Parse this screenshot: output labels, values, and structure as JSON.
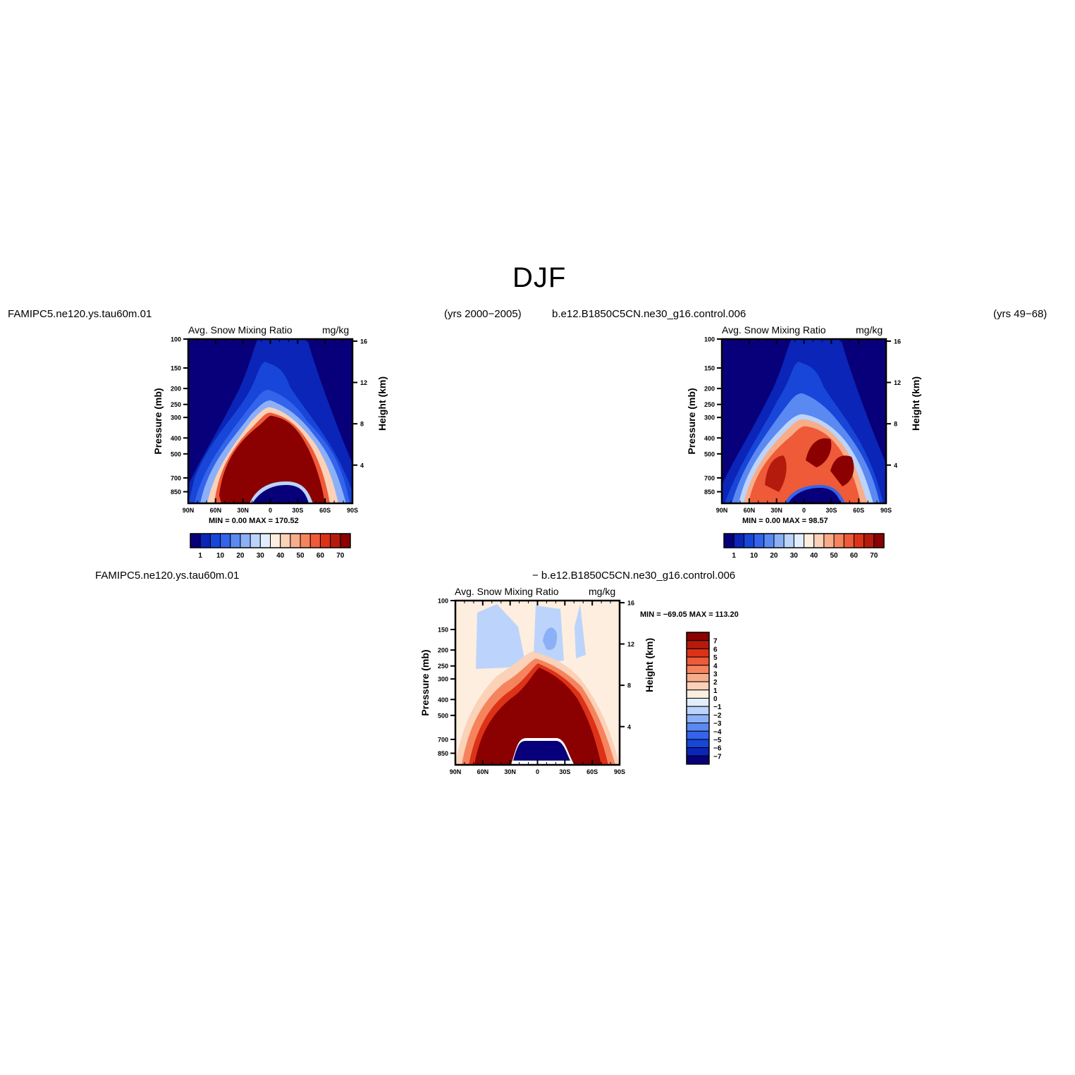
{
  "page": {
    "title": "DJF"
  },
  "panel_a": {
    "case": "FAMIPC5.ne120.ys.tau60m.01",
    "years": "(yrs 2000−2005)",
    "variable": "Avg. Snow Mixing Ratio",
    "units": "mg/kg",
    "left_axis_title": "Pressure (mb)",
    "right_axis_title": "Height (km)",
    "minmax": "MIN =    0.00   MAX = 170.52"
  },
  "panel_b": {
    "case": "b.e12.B1850C5CN.ne30_g16.control.006",
    "years": "(yrs 49−68)",
    "variable": "Avg. Snow Mixing Ratio",
    "units": "mg/kg",
    "left_axis_title": "Pressure (mb)",
    "right_axis_title": "Height (km)",
    "minmax": "MIN =    0.00   MAX =   98.57"
  },
  "panel_diff": {
    "case_a": "FAMIPC5.ne120.ys.tau60m.01",
    "case_b": "− b.e12.B1850C5CN.ne30_g16.control.006",
    "variable": "Avg. Snow Mixing Ratio",
    "units": "mg/kg",
    "left_axis_title": "Pressure (mb)",
    "right_axis_title": "Height (km)",
    "minmax": "MIN = −69.05   MAX = 113.20"
  },
  "colors": {
    "diverging": [
      "#08007a",
      "#0a25b8",
      "#1746d8",
      "#3464ec",
      "#5b89f2",
      "#8cb0f7",
      "#bcd4fb",
      "#e2edfd",
      "#fdeee0",
      "#fbd1b8",
      "#f8ad8a",
      "#f5845e",
      "#ef5a38",
      "#dc3218",
      "#b51b0c",
      "#8b0000"
    ]
  },
  "chart_data": [
    {
      "id": "panel_a",
      "type": "heatmap",
      "title": "Avg. Snow Mixing Ratio",
      "units": "mg/kg",
      "xlabel": "",
      "ylabel": "Pressure (mb)",
      "ylabel_right": "Height (km)",
      "x_ticks": [
        "90N",
        "60N",
        "30N",
        "0",
        "30S",
        "60S",
        "90S"
      ],
      "y_ticks": [
        "100",
        "150",
        "200",
        "250",
        "300",
        "400",
        "500",
        "700",
        "850"
      ],
      "y_ticks_right": [
        "16",
        "12",
        "8",
        "4"
      ],
      "colorbar_labels": [
        "1",
        "10",
        "20",
        "30",
        "40",
        "50",
        "60",
        "70"
      ],
      "min": 0.0,
      "max": 170.52
    },
    {
      "id": "panel_b",
      "type": "heatmap",
      "title": "Avg. Snow Mixing Ratio",
      "units": "mg/kg",
      "xlabel": "",
      "ylabel": "Pressure (mb)",
      "ylabel_right": "Height (km)",
      "x_ticks": [
        "90N",
        "60N",
        "30N",
        "0",
        "30S",
        "60S",
        "90S"
      ],
      "y_ticks": [
        "100",
        "150",
        "200",
        "250",
        "300",
        "400",
        "500",
        "700",
        "850"
      ],
      "y_ticks_right": [
        "16",
        "12",
        "8",
        "4"
      ],
      "colorbar_labels": [
        "1",
        "10",
        "20",
        "30",
        "40",
        "50",
        "60",
        "70"
      ],
      "min": 0.0,
      "max": 98.57
    },
    {
      "id": "panel_diff",
      "type": "heatmap",
      "title": "Avg. Snow Mixing Ratio",
      "units": "mg/kg",
      "xlabel": "",
      "ylabel": "Pressure (mb)",
      "ylabel_right": "Height (km)",
      "x_ticks": [
        "90N",
        "60N",
        "30N",
        "0",
        "30S",
        "60S",
        "90S"
      ],
      "y_ticks": [
        "100",
        "150",
        "200",
        "250",
        "300",
        "400",
        "500",
        "700",
        "850"
      ],
      "y_ticks_right": [
        "16",
        "12",
        "8",
        "4"
      ],
      "colorbar_labels": [
        "7",
        "6",
        "5",
        "4",
        "3",
        "2",
        "1",
        "0",
        "−1",
        "−2",
        "−3",
        "−4",
        "−5",
        "−6",
        "−7"
      ],
      "min": -69.05,
      "max": 113.2
    }
  ]
}
